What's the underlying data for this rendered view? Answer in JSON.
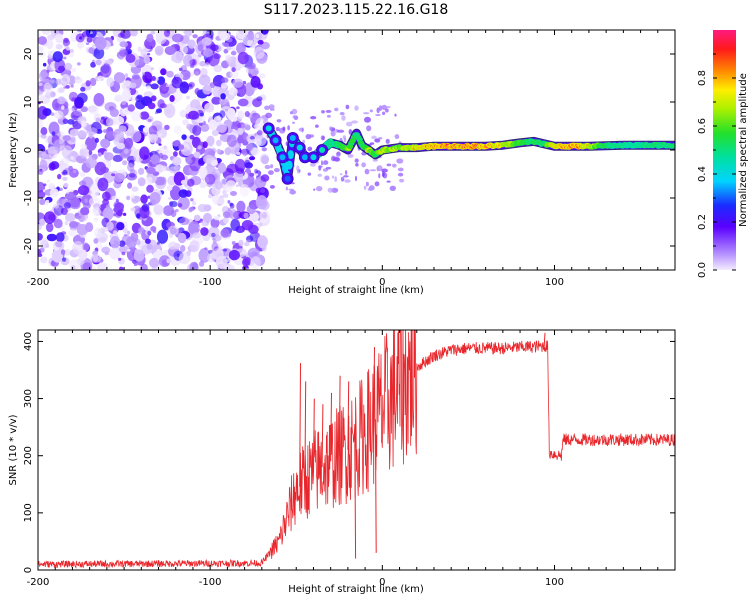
{
  "title": "S117.2023.115.22.16.G18",
  "colors": {
    "snr_line": "#e8262b",
    "spectral_hot": "#ff2222",
    "spectral_mid": "#22dd33",
    "spectral_low": "#6a00ff",
    "spectral_faint": "#dcc4ff"
  },
  "chart_data": [
    {
      "type": "heatmap",
      "xlabel": "Height of straight line (km)",
      "ylabel": "Frequency (Hz)",
      "xlim": [
        -200,
        170
      ],
      "ylim": [
        -25,
        25
      ],
      "xticks": [
        -200,
        -100,
        0,
        100
      ],
      "yticks": [
        -20,
        -10,
        0,
        10,
        20
      ],
      "noise_region_x": [
        -200,
        -68
      ],
      "ridge": [
        {
          "x": -66,
          "y": 4.5,
          "a": 0.35
        },
        {
          "x": -62,
          "y": 2.0,
          "a": 0.3
        },
        {
          "x": -58,
          "y": -1.5,
          "a": 0.3
        },
        {
          "x": -55,
          "y": -6.0,
          "a": 0.25
        },
        {
          "x": -52,
          "y": 2.5,
          "a": 0.3
        },
        {
          "x": -48,
          "y": 0.5,
          "a": 0.35
        },
        {
          "x": -45,
          "y": -1.5,
          "a": 0.3
        },
        {
          "x": -40,
          "y": -1.5,
          "a": 0.35
        },
        {
          "x": -35,
          "y": 0.0,
          "a": 0.4
        },
        {
          "x": -30,
          "y": 1.5,
          "a": 0.45
        },
        {
          "x": -25,
          "y": 1.0,
          "a": 0.5
        },
        {
          "x": -20,
          "y": 0.0,
          "a": 0.7
        },
        {
          "x": -17,
          "y": 2.0,
          "a": 0.55
        },
        {
          "x": -15,
          "y": 3.5,
          "a": 0.5
        },
        {
          "x": -12,
          "y": 1.0,
          "a": 0.55
        },
        {
          "x": -8,
          "y": 0.0,
          "a": 0.7
        },
        {
          "x": -4,
          "y": -1.0,
          "a": 0.55
        },
        {
          "x": 0,
          "y": 0.0,
          "a": 0.75
        },
        {
          "x": 10,
          "y": 0.5,
          "a": 0.7
        },
        {
          "x": 20,
          "y": 0.5,
          "a": 0.85
        },
        {
          "x": 30,
          "y": 0.8,
          "a": 0.9
        },
        {
          "x": 40,
          "y": 0.8,
          "a": 0.95
        },
        {
          "x": 50,
          "y": 0.8,
          "a": 0.95
        },
        {
          "x": 60,
          "y": 0.8,
          "a": 0.95
        },
        {
          "x": 70,
          "y": 1.0,
          "a": 0.85
        },
        {
          "x": 80,
          "y": 1.5,
          "a": 0.6
        },
        {
          "x": 88,
          "y": 1.8,
          "a": 0.55
        },
        {
          "x": 95,
          "y": 1.2,
          "a": 0.55
        },
        {
          "x": 100,
          "y": 0.8,
          "a": 0.9
        },
        {
          "x": 110,
          "y": 0.8,
          "a": 0.95
        },
        {
          "x": 120,
          "y": 0.8,
          "a": 0.8
        },
        {
          "x": 130,
          "y": 0.9,
          "a": 0.5
        },
        {
          "x": 140,
          "y": 1.0,
          "a": 0.45
        },
        {
          "x": 150,
          "y": 1.0,
          "a": 0.45
        },
        {
          "x": 160,
          "y": 1.0,
          "a": 0.5
        },
        {
          "x": 170,
          "y": 1.0,
          "a": 0.5
        }
      ],
      "colorbar": {
        "label": "Normalized spectral amplitude",
        "ticks": [
          0.0,
          0.2,
          0.4,
          0.6,
          0.8
        ],
        "range": [
          0,
          1
        ]
      }
    },
    {
      "type": "line",
      "xlabel": "Height of straight line (km)",
      "ylabel": "SNR (10 * v/v)",
      "xlim": [
        -200,
        170
      ],
      "ylim": [
        0,
        420
      ],
      "xticks": [
        -200,
        -100,
        0,
        100
      ],
      "yticks": [
        0,
        100,
        200,
        300,
        400
      ],
      "series": [
        {
          "envelope": [
            {
              "x": -200,
              "y": 10
            },
            {
              "x": -70,
              "y": 12
            },
            {
              "x": -60,
              "y": 50
            },
            {
              "x": -50,
              "y": 140
            },
            {
              "x": -40,
              "y": 170
            },
            {
              "x": -30,
              "y": 190
            },
            {
              "x": -20,
              "y": 210
            },
            {
              "x": -10,
              "y": 240
            },
            {
              "x": 0,
              "y": 280
            },
            {
              "x": 10,
              "y": 320
            },
            {
              "x": 20,
              "y": 355
            },
            {
              "x": 30,
              "y": 375
            },
            {
              "x": 40,
              "y": 385
            },
            {
              "x": 50,
              "y": 388
            },
            {
              "x": 60,
              "y": 388
            },
            {
              "x": 70,
              "y": 388
            },
            {
              "x": 80,
              "y": 390
            },
            {
              "x": 96,
              "y": 392
            },
            {
              "x": 97,
              "y": 205
            },
            {
              "x": 104,
              "y": 200
            },
            {
              "x": 105,
              "y": 228
            },
            {
              "x": 170,
              "y": 228
            }
          ],
          "spikes": [
            {
              "x": -48,
              "y": 362
            },
            {
              "x": -45,
              "y": 330
            },
            {
              "x": -40,
              "y": 300
            },
            {
              "x": -35,
              "y": 290
            },
            {
              "x": -30,
              "y": 310
            },
            {
              "x": -25,
              "y": 340
            },
            {
              "x": -20,
              "y": 330
            },
            {
              "x": -16,
              "y": 20
            },
            {
              "x": -5,
              "y": 390
            },
            {
              "x": -4,
              "y": 30
            },
            {
              "x": 94,
              "y": 415
            }
          ]
        }
      ]
    }
  ]
}
